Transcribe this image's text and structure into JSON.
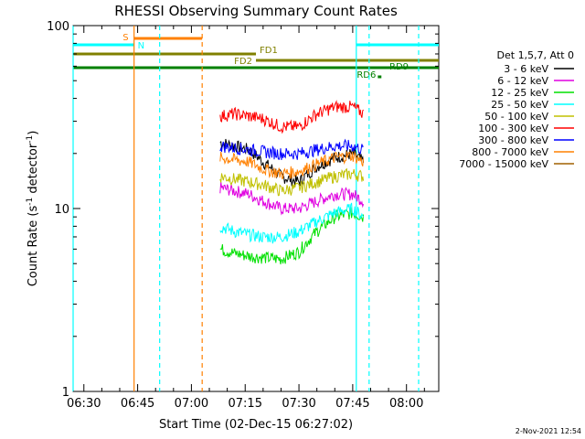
{
  "chart_data": {
    "type": "line",
    "title": "RHESSI Observing Summary Count Rates",
    "xlabel": "Start Time (02-Dec-15 06:27:02)",
    "ylabel": "Count Rate (s",
    "ylabel_sup": "-1",
    "ylabel_tail": " detector",
    "ylabel_close": ")",
    "ylog": true,
    "xlim": [
      "06:27",
      "08:09"
    ],
    "ylim": [
      1,
      100
    ],
    "x_ticks": [
      "06:30",
      "06:45",
      "07:00",
      "07:15",
      "07:30",
      "07:45",
      "08:00"
    ],
    "y_ticks": [
      "1",
      "10",
      "100"
    ],
    "legend_title": "Det 1,5,7, Att 0",
    "legend_position": "right",
    "series": [
      {
        "name": "3 - 6 keV",
        "color": "#000000",
        "x": [
          "07:08",
          "07:12",
          "07:16",
          "07:20",
          "07:25",
          "07:30",
          "07:35",
          "07:40",
          "07:45",
          "07:48"
        ],
        "values": [
          23,
          22,
          21,
          18,
          15,
          14,
          17,
          19,
          20,
          18
        ]
      },
      {
        "name": "6 - 12 keV",
        "color": "#e000e0",
        "x": [
          "07:08",
          "07:12",
          "07:16",
          "07:20",
          "07:25",
          "07:30",
          "07:35",
          "07:40",
          "07:45",
          "07:48"
        ],
        "values": [
          13,
          12.5,
          12,
          11,
          10,
          10,
          11,
          12,
          12,
          11
        ]
      },
      {
        "name": "12 - 25 keV",
        "color": "#00e000",
        "x": [
          "07:08",
          "07:12",
          "07:16",
          "07:20",
          "07:25",
          "07:30",
          "07:35",
          "07:40",
          "07:45",
          "07:48"
        ],
        "values": [
          6,
          5.7,
          5.5,
          5.4,
          5.3,
          5.8,
          7.5,
          9,
          9.5,
          9
        ]
      },
      {
        "name": "25 - 50 keV",
        "color": "#00ffff",
        "x": [
          "07:08",
          "07:12",
          "07:16",
          "07:20",
          "07:25",
          "07:30",
          "07:35",
          "07:40",
          "07:45",
          "07:48"
        ],
        "values": [
          8,
          7.5,
          7.2,
          7,
          7,
          7.5,
          8.5,
          9.5,
          10,
          9
        ]
      },
      {
        "name": "50 - 100 keV",
        "color": "#c0c000",
        "x": [
          "07:08",
          "07:12",
          "07:16",
          "07:20",
          "07:25",
          "07:30",
          "07:35",
          "07:40",
          "07:45",
          "07:48"
        ],
        "values": [
          15,
          14.5,
          14,
          13.5,
          12.5,
          13,
          14,
          15,
          15.5,
          15
        ]
      },
      {
        "name": "100 - 300 keV",
        "color": "#ff0000",
        "x": [
          "07:08",
          "07:12",
          "07:16",
          "07:20",
          "07:25",
          "07:30",
          "07:35",
          "07:40",
          "07:45",
          "07:48"
        ],
        "values": [
          32,
          33,
          32,
          31,
          28,
          28,
          33,
          36,
          36,
          33
        ]
      },
      {
        "name": "300 - 800 keV",
        "color": "#0000ff",
        "x": [
          "07:08",
          "07:12",
          "07:16",
          "07:20",
          "07:25",
          "07:30",
          "07:35",
          "07:40",
          "07:45",
          "07:48"
        ],
        "values": [
          22,
          21.5,
          21,
          20.5,
          20,
          20,
          21,
          22,
          22,
          21
        ]
      },
      {
        "name": "800 - 7000 keV",
        "color": "#ff8000",
        "x": [
          "07:08",
          "07:12",
          "07:16",
          "07:20",
          "07:25",
          "07:30",
          "07:35",
          "07:40",
          "07:45",
          "07:48"
        ],
        "values": [
          19,
          18.5,
          18,
          16.5,
          15.5,
          16,
          17.5,
          19,
          19.5,
          18
        ]
      },
      {
        "name": "7000 - 15000 keV",
        "color": "#a06000",
        "x": [],
        "values": []
      }
    ],
    "flags": [
      {
        "label": "S",
        "color": "#ff8000",
        "start": "06:44",
        "end": "07:03"
      },
      {
        "label": "N",
        "color": "#00ffff",
        "start": "06:27",
        "end": "06:44"
      },
      {
        "label": "N",
        "color": "#00ffff",
        "start": "07:46",
        "end": "08:09"
      },
      {
        "label": "FD1",
        "color": "#808000",
        "start": "06:27",
        "end": "07:18"
      },
      {
        "label": "FD2",
        "color": "#808000",
        "start": "07:18",
        "end": "08:09"
      },
      {
        "label": "RD6",
        "color": "#008000",
        "start": "06:27",
        "end": "08:09"
      },
      {
        "label": "RD6",
        "color": "#008000",
        "start": "07:52",
        "end": "07:53"
      },
      {
        "label": "RD9",
        "color": "#008000",
        "start": "",
        "end": ""
      }
    ],
    "footer_timestamp": "2-Nov-2021 12:54"
  }
}
